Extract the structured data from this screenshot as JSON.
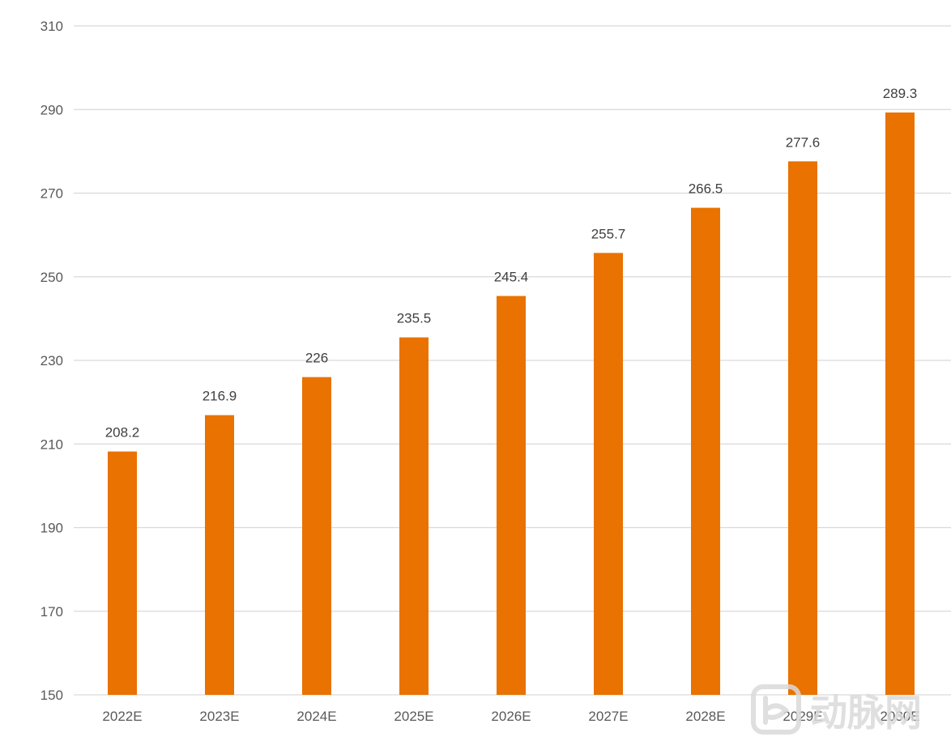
{
  "chart_data": {
    "type": "bar",
    "categories": [
      "2022E",
      "2023E",
      "2024E",
      "2025E",
      "2026E",
      "2027E",
      "2028E",
      "2029E",
      "2030E"
    ],
    "values": [
      208.2,
      216.9,
      226,
      235.5,
      245.4,
      255.7,
      266.5,
      277.6,
      289.3
    ],
    "data_labels": [
      "208.2",
      "216.9",
      "226",
      "235.5",
      "245.4",
      "255.7",
      "266.5",
      "277.6",
      "289.3"
    ],
    "yticks": [
      "150",
      "170",
      "190",
      "210",
      "230",
      "250",
      "270",
      "290",
      "310"
    ],
    "ylim": [
      150,
      310
    ],
    "grid": true,
    "legend": "none",
    "bar_color": "#E97200",
    "grid_color": "#D9D9D9"
  },
  "watermark": {
    "text": "动脉网",
    "logo_mark": "动脉网 logo"
  }
}
